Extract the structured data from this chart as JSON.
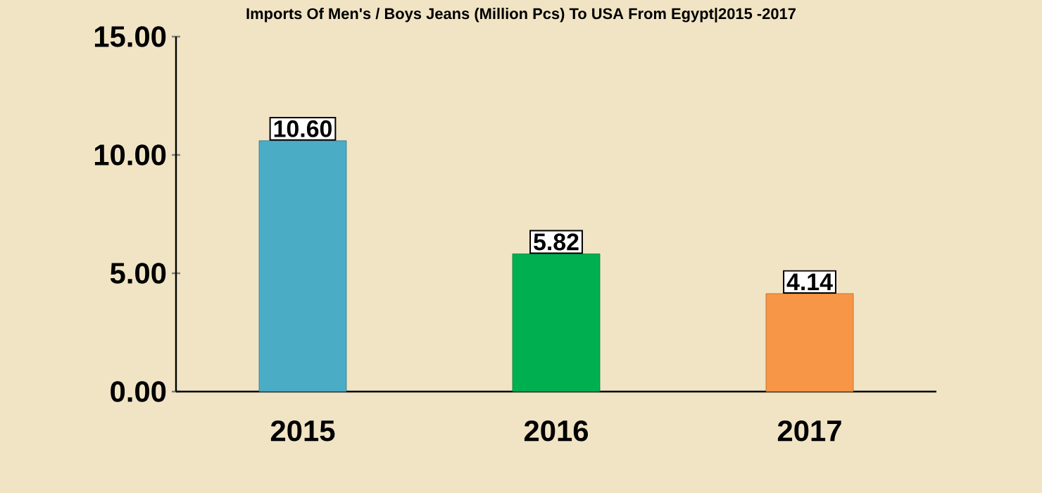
{
  "chart_data": {
    "type": "bar",
    "title": "Imports Of Men's / Boys Jeans (Million Pcs) To USA From Egypt|2015 -2017",
    "categories": [
      "2015",
      "2016",
      "2017"
    ],
    "values": [
      10.6,
      5.82,
      4.14
    ],
    "colors": [
      "#4bacc6",
      "#00b050",
      "#f79646"
    ],
    "value_labels": [
      "10.60",
      "5.82",
      "4.14"
    ],
    "ylim": [
      0,
      15
    ],
    "yticks": [
      {
        "value": 0,
        "label": "0.00"
      },
      {
        "value": 5,
        "label": "5.00"
      },
      {
        "value": 10,
        "label": "10.00"
      },
      {
        "value": 15,
        "label": "15.00"
      }
    ],
    "grid": false
  }
}
